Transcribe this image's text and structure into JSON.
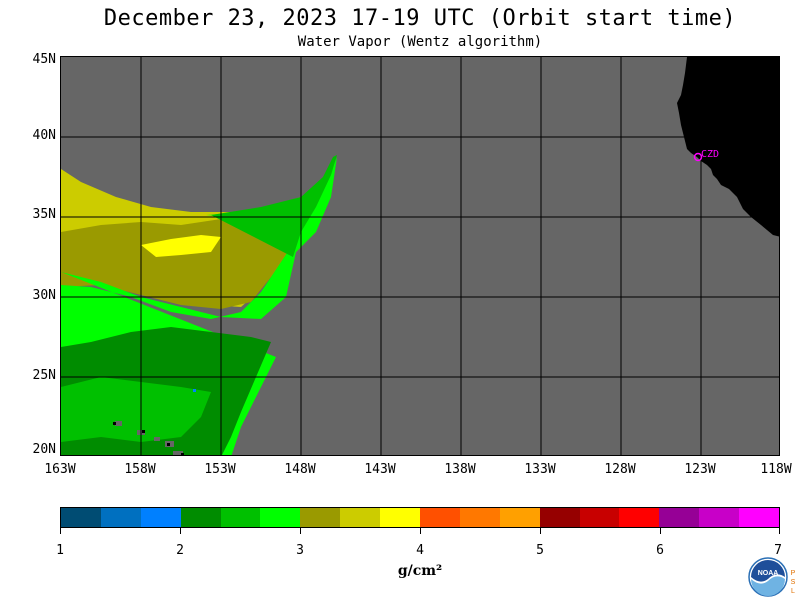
{
  "header": {
    "title": "December 23, 2023  17-19 UTC  (Orbit start time)",
    "subtitle": "Water Vapor (Wentz algorithm)"
  },
  "map": {
    "lat_labels": [
      "45N",
      "40N",
      "35N",
      "30N",
      "25N",
      "20N"
    ],
    "lon_labels": [
      "163W",
      "158W",
      "153W",
      "148W",
      "143W",
      "138W",
      "133W",
      "128W",
      "123W",
      "118W"
    ],
    "station_label": "CZD",
    "colors": {
      "no_data": "#666666",
      "land": "#000000",
      "station": "#ff00ff"
    }
  },
  "colorbar": {
    "tick_labels": [
      "1",
      "2",
      "3",
      "4",
      "5",
      "6",
      "7"
    ],
    "units": "g/cm²",
    "colors": [
      "#004c73",
      "#0070c0",
      "#0080ff",
      "#008c00",
      "#00c000",
      "#00ff00",
      "#9a9a00",
      "#cccc00",
      "#ffff00",
      "#ff5000",
      "#ff7800",
      "#ffa000",
      "#960000",
      "#c80000",
      "#ff0000",
      "#960096",
      "#c800c8",
      "#ff00ff"
    ]
  },
  "logo": {
    "text": "NOAA",
    "side_letters": "PSL"
  }
}
